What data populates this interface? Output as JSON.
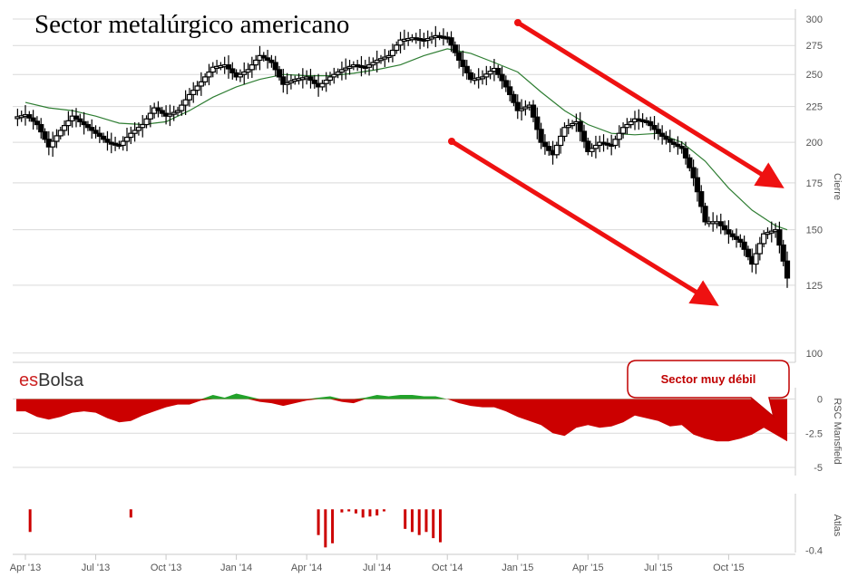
{
  "chart_data": [
    {
      "type": "candlestick",
      "panel": "price",
      "title": "Sector metalúrgico americano",
      "ylabel": "Cierre",
      "yscale": "log",
      "ylim": [
        97,
        310
      ],
      "yticks": [
        100,
        125,
        150,
        175,
        200,
        225,
        250,
        275,
        300
      ],
      "xticks": [
        "Apr '13",
        "Jul '13",
        "Oct '13",
        "Jan '14",
        "Apr '14",
        "Jul '14",
        "Oct '14",
        "Jan '15",
        "Apr '15",
        "Jul '15",
        "Oct '15"
      ],
      "xlim_months": [
        -0.3,
        30.7
      ],
      "series": [
        {
          "kind": "close",
          "points": [
            [
              0.0,
              219
            ],
            [
              0.5,
              212
            ],
            [
              1.0,
              197
            ],
            [
              1.5,
              208
            ],
            [
              2.0,
              218
            ],
            [
              2.5,
              212
            ],
            [
              3.0,
              206
            ],
            [
              3.5,
              200
            ],
            [
              4.0,
              198
            ],
            [
              4.5,
              206
            ],
            [
              5.0,
              212
            ],
            [
              5.5,
              224
            ],
            [
              6.0,
              218
            ],
            [
              6.5,
              222
            ],
            [
              7.0,
              234
            ],
            [
              7.5,
              244
            ],
            [
              8.0,
              256
            ],
            [
              8.5,
              258
            ],
            [
              9.0,
              248
            ],
            [
              9.5,
              254
            ],
            [
              10.0,
              266
            ],
            [
              10.5,
              260
            ],
            [
              11.0,
              242
            ],
            [
              11.5,
              246
            ],
            [
              12.0,
              248
            ],
            [
              12.5,
              240
            ],
            [
              13.0,
              248
            ],
            [
              13.5,
              254
            ],
            [
              14.0,
              258
            ],
            [
              14.5,
              256
            ],
            [
              15.0,
              262
            ],
            [
              15.5,
              266
            ],
            [
              16.0,
              280
            ],
            [
              16.5,
              282
            ],
            [
              17.0,
              280
            ],
            [
              17.5,
              284
            ],
            [
              18.0,
              282
            ],
            [
              18.5,
              262
            ],
            [
              19.0,
              246
            ],
            [
              19.5,
              248
            ],
            [
              20.0,
              255
            ],
            [
              20.5,
              240
            ],
            [
              21.0,
              222
            ],
            [
              21.5,
              226
            ],
            [
              22.0,
              200
            ],
            [
              22.5,
              192
            ],
            [
              23.0,
              210
            ],
            [
              23.5,
              214
            ],
            [
              24.0,
              194
            ],
            [
              24.5,
              200
            ],
            [
              25.0,
              198
            ],
            [
              25.5,
              210
            ],
            [
              26.0,
              216
            ],
            [
              26.5,
              214
            ],
            [
              27.0,
              206
            ],
            [
              27.5,
              200
            ],
            [
              28.0,
              196
            ],
            [
              28.5,
              178
            ],
            [
              29.0,
              154
            ],
            [
              29.5,
              154
            ],
            [
              30.0,
              148
            ],
            [
              30.5,
              144
            ],
            [
              31.0,
              134
            ],
            [
              31.5,
              148
            ],
            [
              32.0,
              150
            ],
            [
              32.5,
              128
            ]
          ]
        },
        {
          "kind": "moving-average",
          "points": [
            [
              0.0,
              228
            ],
            [
              1.0,
              224
            ],
            [
              2.0,
              222
            ],
            [
              3.0,
              218
            ],
            [
              4.0,
              213
            ],
            [
              5.0,
              212
            ],
            [
              6.0,
              214
            ],
            [
              7.0,
              222
            ],
            [
              8.0,
              232
            ],
            [
              9.0,
              240
            ],
            [
              10.0,
              246
            ],
            [
              11.0,
              250
            ],
            [
              12.0,
              249
            ],
            [
              13.0,
              249
            ],
            [
              14.0,
              251
            ],
            [
              15.0,
              254
            ],
            [
              16.0,
              258
            ],
            [
              17.0,
              266
            ],
            [
              18.0,
              272
            ],
            [
              19.0,
              268
            ],
            [
              20.0,
              260
            ],
            [
              21.0,
              252
            ],
            [
              22.0,
              236
            ],
            [
              23.0,
              222
            ],
            [
              24.0,
              212
            ],
            [
              25.0,
              206
            ],
            [
              26.0,
              205
            ],
            [
              27.0,
              206
            ],
            [
              28.0,
              200
            ],
            [
              29.0,
              188
            ],
            [
              30.0,
              172
            ],
            [
              31.0,
              160
            ],
            [
              32.0,
              152
            ],
            [
              32.5,
              150
            ]
          ]
        }
      ],
      "annotations": [
        "descending-channel-arrow-upper",
        "descending-channel-arrow-lower"
      ]
    },
    {
      "type": "area",
      "panel": "mansfield",
      "ylabel": "RSC Mansfield",
      "yticks": [
        0,
        -2.5,
        -5
      ],
      "ylim": [
        -5.6,
        0.7
      ],
      "points": [
        [
          0.0,
          -0.9
        ],
        [
          0.5,
          -1.3
        ],
        [
          1.0,
          -1.5
        ],
        [
          1.5,
          -1.3
        ],
        [
          2.0,
          -1.0
        ],
        [
          2.5,
          -0.9
        ],
        [
          3.0,
          -1.0
        ],
        [
          3.5,
          -1.4
        ],
        [
          4.0,
          -1.7
        ],
        [
          4.5,
          -1.6
        ],
        [
          5.0,
          -1.2
        ],
        [
          5.5,
          -0.9
        ],
        [
          6.0,
          -0.6
        ],
        [
          6.5,
          -0.4
        ],
        [
          7.0,
          -0.4
        ],
        [
          7.5,
          -0.1
        ],
        [
          8.0,
          0.3
        ],
        [
          8.5,
          0.1
        ],
        [
          9.0,
          0.4
        ],
        [
          9.5,
          0.2
        ],
        [
          10.0,
          -0.2
        ],
        [
          10.5,
          -0.3
        ],
        [
          11.0,
          -0.5
        ],
        [
          11.5,
          -0.3
        ],
        [
          12.0,
          -0.1
        ],
        [
          12.5,
          0.1
        ],
        [
          13.0,
          0.2
        ],
        [
          13.5,
          -0.2
        ],
        [
          14.0,
          -0.3
        ],
        [
          14.5,
          0.1
        ],
        [
          15.0,
          0.3
        ],
        [
          15.5,
          0.2
        ],
        [
          16.0,
          0.3
        ],
        [
          16.5,
          0.3
        ],
        [
          17.0,
          0.2
        ],
        [
          17.5,
          0.2
        ],
        [
          18.0,
          0.0
        ],
        [
          18.5,
          -0.3
        ],
        [
          19.0,
          -0.5
        ],
        [
          19.5,
          -0.6
        ],
        [
          20.0,
          -0.6
        ],
        [
          20.5,
          -0.9
        ],
        [
          21.0,
          -1.3
        ],
        [
          21.5,
          -1.6
        ],
        [
          22.0,
          -1.9
        ],
        [
          22.5,
          -2.5
        ],
        [
          23.0,
          -2.7
        ],
        [
          23.5,
          -2.1
        ],
        [
          24.0,
          -1.9
        ],
        [
          24.5,
          -2.1
        ],
        [
          25.0,
          -2.0
        ],
        [
          25.5,
          -1.7
        ],
        [
          26.0,
          -1.2
        ],
        [
          26.5,
          -1.4
        ],
        [
          27.0,
          -1.6
        ],
        [
          27.5,
          -2.0
        ],
        [
          28.0,
          -1.9
        ],
        [
          28.5,
          -2.6
        ],
        [
          29.0,
          -2.9
        ],
        [
          29.5,
          -3.1
        ],
        [
          30.0,
          -3.1
        ],
        [
          30.5,
          -2.9
        ],
        [
          31.0,
          -2.6
        ],
        [
          31.5,
          -2.1
        ],
        [
          32.0,
          -2.6
        ],
        [
          32.5,
          -3.1
        ]
      ],
      "positive_color": "#22a22a",
      "negative_color": "#cc0000"
    },
    {
      "type": "bar",
      "panel": "atlas",
      "ylabel": "Atlas",
      "yticks": [
        -0.4
      ],
      "ylim": [
        -0.42,
        0.02
      ],
      "bars": [
        [
          0.2,
          -0.22
        ],
        [
          4.5,
          -0.08
        ],
        [
          12.5,
          -0.25
        ],
        [
          12.8,
          -0.37
        ],
        [
          13.1,
          -0.33
        ],
        [
          13.5,
          -0.03
        ],
        [
          13.8,
          -0.02
        ],
        [
          14.1,
          -0.04
        ],
        [
          14.4,
          -0.08
        ],
        [
          14.7,
          -0.07
        ],
        [
          15.0,
          -0.06
        ],
        [
          15.3,
          -0.02
        ],
        [
          16.2,
          -0.19
        ],
        [
          16.5,
          -0.22
        ],
        [
          16.8,
          -0.25
        ],
        [
          17.1,
          -0.22
        ],
        [
          17.4,
          -0.28
        ],
        [
          17.7,
          -0.32
        ]
      ],
      "color": "#cc0000"
    }
  ],
  "labels": {
    "title": "Sector metalúrgico americano",
    "brand_es": "es",
    "brand_bolsa": "Bolsa",
    "callout": "Sector muy débil",
    "axis_price": "Cierre",
    "axis_mansfield": "RSC Mansfield",
    "axis_atlas": "Atlas"
  },
  "colors": {
    "brand_es": "#cc2222",
    "brand_bolsa": "#333333",
    "candle": "#000000",
    "moving_average": "#2e7d32",
    "arrow": "#ee1111",
    "callout_border": "#c00000"
  }
}
